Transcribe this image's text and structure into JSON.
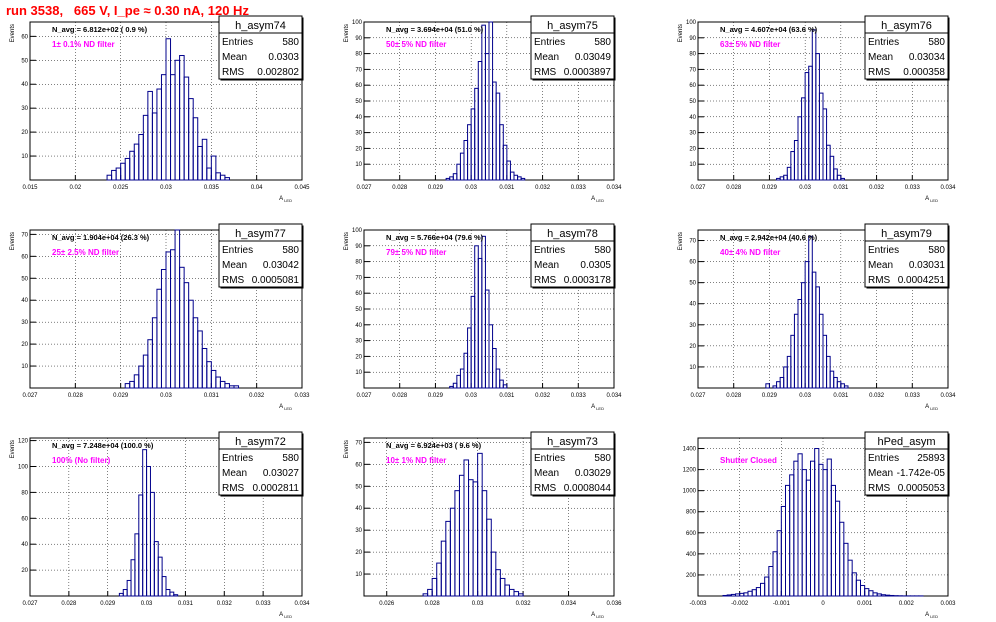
{
  "title": "run 3538,   665 V, I_pe ≈ 0.30 nA, 120 Hz",
  "colors": {
    "histogram": "#00008b",
    "annotation": "#ff00ff",
    "title": "#ff0000",
    "grid": "#000000"
  },
  "chart_data": [
    {
      "type": "histogram",
      "name": "h_asym74",
      "xlabel": "A_LED",
      "ylabel": "Events",
      "xlim": [
        0.015,
        0.045
      ],
      "ylim": [
        0,
        66
      ],
      "xticks": [
        "0.015",
        "0.02",
        "0.025",
        "0.03",
        "0.035",
        "0.04",
        "0.045"
      ],
      "yticks": [
        "10",
        "20",
        "30",
        "40",
        "50",
        "60"
      ],
      "navg": "N_avg = 6.812e+02 ( 0.9 %)",
      "annotation": "1± 0.1% ND filter",
      "stats": [
        [
          "Entries",
          "580"
        ],
        [
          "Mean",
          "0.0303"
        ],
        [
          "RMS",
          "0.002802"
        ]
      ],
      "bins": {
        "start": 0.0235,
        "width": 0.0005,
        "counts": [
          2,
          4,
          5,
          7,
          9,
          12,
          15,
          19,
          27,
          37,
          28,
          38,
          44,
          59,
          44,
          50,
          52,
          43,
          34,
          26,
          14,
          17,
          5,
          10,
          3,
          2,
          1
        ]
      }
    },
    {
      "type": "histogram",
      "name": "h_asym75",
      "xlabel": "A_LED",
      "ylabel": "Events",
      "xlim": [
        0.027,
        0.034
      ],
      "ylim": [
        0,
        100
      ],
      "xticks": [
        "0.027",
        "0.028",
        "0.029",
        "0.03",
        "0.031",
        "0.032",
        "0.033",
        "0.034"
      ],
      "yticks": [
        "10",
        "20",
        "30",
        "40",
        "50",
        "60",
        "70",
        "80",
        "90",
        "100"
      ],
      "navg": "N_avg = 3.694e+04 (51.0 %)",
      "annotation": "50± 5% ND filter",
      "stats": [
        [
          "Entries",
          "580"
        ],
        [
          "Mean",
          "0.03049"
        ],
        [
          "RMS",
          "0.0003897"
        ]
      ],
      "bins": {
        "start": 0.0293,
        "width": 0.0001,
        "counts": [
          1,
          2,
          4,
          10,
          17,
          25,
          35,
          45,
          58,
          75,
          98,
          80,
          100,
          62,
          55,
          35,
          22,
          12,
          5,
          3,
          2,
          1
        ]
      }
    },
    {
      "type": "histogram",
      "name": "h_asym76",
      "xlabel": "A_LED",
      "ylabel": "Events",
      "xlim": [
        0.027,
        0.034
      ],
      "ylim": [
        0,
        100
      ],
      "xticks": [
        "0.027",
        "0.028",
        "0.029",
        "0.03",
        "0.031",
        "0.032",
        "0.033",
        "0.034"
      ],
      "yticks": [
        "10",
        "20",
        "30",
        "40",
        "50",
        "60",
        "70",
        "80",
        "90",
        "100"
      ],
      "navg": "N_avg = 4.607e+04 (63.6 %)",
      "annotation": "63± 5% ND filter",
      "stats": [
        [
          "Entries",
          "580"
        ],
        [
          "Mean",
          "0.03034"
        ],
        [
          "RMS",
          "0.000358"
        ]
      ],
      "bins": {
        "start": 0.0292,
        "width": 0.0001,
        "counts": [
          1,
          2,
          3,
          8,
          18,
          25,
          40,
          52,
          68,
          72,
          95,
          80,
          55,
          45,
          22,
          15,
          7,
          3,
          1
        ]
      }
    },
    {
      "type": "histogram",
      "name": "h_asym77",
      "xlabel": "A_LED",
      "ylabel": "Events",
      "xlim": [
        0.027,
        0.033
      ],
      "ylim": [
        0,
        72
      ],
      "xticks": [
        "0.027",
        "0.028",
        "0.029",
        "0.03",
        "0.031",
        "0.032",
        "0.033"
      ],
      "yticks": [
        "10",
        "20",
        "30",
        "40",
        "50",
        "60",
        "70"
      ],
      "navg": "N_avg = 1.904e+04 (26.3 %)",
      "annotation": "25± 2.5% ND filter",
      "stats": [
        [
          "Entries",
          "580"
        ],
        [
          "Mean",
          "0.03042"
        ],
        [
          "RMS",
          "0.0005081"
        ]
      ],
      "bins": {
        "start": 0.0291,
        "width": 0.0001,
        "counts": [
          2,
          3,
          6,
          10,
          15,
          22,
          32,
          45,
          54,
          62,
          63,
          72,
          55,
          48,
          40,
          32,
          26,
          18,
          12,
          8,
          5,
          3,
          2,
          1,
          1
        ]
      }
    },
    {
      "type": "histogram",
      "name": "h_asym78",
      "xlabel": "A_LED",
      "ylabel": "Events",
      "xlim": [
        0.027,
        0.034
      ],
      "ylim": [
        0,
        100
      ],
      "xticks": [
        "0.027",
        "0.028",
        "0.029",
        "0.03",
        "0.031",
        "0.032",
        "0.033",
        "0.034"
      ],
      "yticks": [
        "10",
        "20",
        "30",
        "40",
        "50",
        "60",
        "70",
        "80",
        "90",
        "100"
      ],
      "navg": "N_avg = 5.766e+04 (79.6 %)",
      "annotation": "79± 5% ND filter",
      "stats": [
        [
          "Entries",
          "580"
        ],
        [
          "Mean",
          "0.0305"
        ],
        [
          "RMS",
          "0.0003178"
        ]
      ],
      "bins": {
        "start": 0.0294,
        "width": 0.0001,
        "counts": [
          1,
          3,
          8,
          12,
          22,
          38,
          58,
          90,
          82,
          96,
          62,
          40,
          25,
          12,
          5,
          2
        ]
      }
    },
    {
      "type": "histogram",
      "name": "h_asym79",
      "xlabel": "A_LED",
      "ylabel": "Events",
      "xlim": [
        0.027,
        0.034
      ],
      "ylim": [
        0,
        75
      ],
      "xticks": [
        "0.027",
        "0.028",
        "0.029",
        "0.03",
        "0.031",
        "0.032",
        "0.033",
        "0.034"
      ],
      "yticks": [
        "10",
        "20",
        "30",
        "40",
        "50",
        "60",
        "70"
      ],
      "navg": "N_avg = 2.942e+04 (40.6 %)",
      "annotation": "40± 4% ND filter",
      "stats": [
        [
          "Entries",
          "580"
        ],
        [
          "Mean",
          "0.03031"
        ],
        [
          "RMS",
          "0.0004251"
        ]
      ],
      "bins": {
        "start": 0.0289,
        "width": 0.0001,
        "counts": [
          2,
          0,
          1,
          3,
          5,
          10,
          15,
          25,
          35,
          42,
          50,
          60,
          72,
          55,
          48,
          35,
          25,
          15,
          8,
          5,
          3,
          2,
          1
        ]
      }
    },
    {
      "type": "histogram",
      "name": "h_asym72",
      "xlabel": "A_LED",
      "ylabel": "Events",
      "xlim": [
        0.027,
        0.034
      ],
      "ylim": [
        0,
        122
      ],
      "xticks": [
        "0.027",
        "0.028",
        "0.029",
        "0.03",
        "0.031",
        "0.032",
        "0.033",
        "0.034"
      ],
      "yticks": [
        "20",
        "40",
        "60",
        "80",
        "100",
        "120"
      ],
      "navg": "N_avg = 7.248e+04 (100.0 %)",
      "annotation": "100% (No filter)",
      "stats": [
        [
          "Entries",
          "580"
        ],
        [
          "Mean",
          "0.03027"
        ],
        [
          "RMS",
          "0.0002811"
        ]
      ],
      "bins": {
        "start": 0.0293,
        "width": 0.0001,
        "counts": [
          2,
          5,
          12,
          28,
          48,
          78,
          113,
          100,
          80,
          42,
          30,
          15,
          5,
          3,
          1
        ]
      }
    },
    {
      "type": "histogram",
      "name": "h_asym73",
      "xlabel": "A_LED",
      "ylabel": "Events",
      "xlim": [
        0.025,
        0.036
      ],
      "ylim": [
        0,
        72
      ],
      "xticks": [
        "0.026",
        "0.028",
        "0.03",
        "0.032",
        "0.034",
        "0.036"
      ],
      "yticks": [
        "10",
        "20",
        "30",
        "40",
        "50",
        "60",
        "70"
      ],
      "navg": "N_avg = 6.924e+03 ( 9.6 %)",
      "annotation": "10± 1% ND filter",
      "stats": [
        [
          "Entries",
          "580"
        ],
        [
          "Mean",
          "0.03029"
        ],
        [
          "RMS",
          "0.0008044"
        ]
      ],
      "bins": {
        "start": 0.0276,
        "width": 0.0002,
        "counts": [
          1,
          3,
          8,
          15,
          25,
          34,
          40,
          48,
          55,
          62,
          53,
          52,
          65,
          48,
          35,
          20,
          12,
          8,
          5,
          3,
          2,
          1
        ]
      }
    },
    {
      "type": "histogram",
      "name": "hPed_asym",
      "xlabel": "A_LED",
      "ylabel": "",
      "xlim": [
        -0.003,
        0.003
      ],
      "ylim": [
        0,
        1500
      ],
      "xticks": [
        "-0.003",
        "-0.002",
        "-0.001",
        "0",
        "0.001",
        "0.002",
        "0.003"
      ],
      "yticks": [
        "200",
        "400",
        "600",
        "800",
        "1000",
        "1200",
        "1400"
      ],
      "navg": "",
      "annotation": "Shutter Closed",
      "stats": [
        [
          "Entries",
          "25893"
        ],
        [
          "Mean",
          "-1.742e-05"
        ],
        [
          "RMS",
          "0.0005053"
        ]
      ],
      "bins": {
        "start": -0.0024,
        "width": 0.0001,
        "counts": [
          5,
          10,
          15,
          20,
          25,
          30,
          45,
          60,
          80,
          120,
          180,
          280,
          420,
          620,
          850,
          1050,
          1150,
          1280,
          1350,
          1200,
          1100,
          1280,
          1400,
          1250,
          1200,
          1300,
          1050,
          900,
          700,
          500,
          340,
          220,
          150,
          100,
          70,
          50,
          30,
          20,
          12,
          8,
          5,
          3,
          2,
          1,
          1,
          1,
          1,
          1
        ]
      }
    }
  ]
}
